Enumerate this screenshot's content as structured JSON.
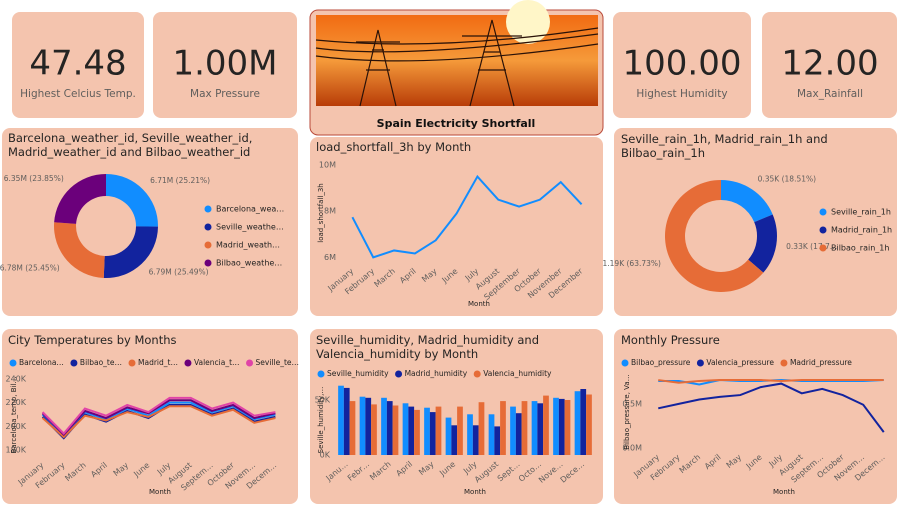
{
  "cards": [
    {
      "value": "47.48",
      "label": "Highest Celcius Temp."
    },
    {
      "value": "1.00M",
      "label": "Max Pressure"
    },
    {
      "value": "100.00",
      "label": "Highest Humidity"
    },
    {
      "value": "12.00",
      "label": "Max_Rainfall"
    }
  ],
  "banner": {
    "title": "Spain Electricity Shortfall"
  },
  "chart_data": [
    {
      "type": "donut",
      "title": "Barcelona_weather_id, Seville_weather_id, Madrid_weather_id and Bilbao_weather_id",
      "categories": [
        "Barcelona_wea…",
        "Seville_weathe…",
        "Madrid_weath…",
        "Bilbao_weathe…"
      ],
      "values": [
        6710000,
        6790000,
        6780000,
        6350000
      ],
      "value_labels": [
        "6.71M (25.21%)",
        "6.79M (25.49%)",
        "6.78M (25.45%)",
        "6.35M (23.85%)"
      ],
      "colors": [
        "#118DFF",
        "#12239E",
        "#E66C37",
        "#6B007B"
      ]
    },
    {
      "type": "line",
      "title": "load_shortfall_3h by Month",
      "x_label": "Month",
      "y_label": "load_shortfall_3h",
      "categories": [
        "January",
        "February",
        "March",
        "April",
        "May",
        "June",
        "July",
        "August",
        "September",
        "October",
        "November",
        "December"
      ],
      "values": [
        7740000,
        6000000,
        6300000,
        6170000,
        6740000,
        7900000,
        9500000,
        8500000,
        8200000,
        8500000,
        9260000,
        8300000
      ],
      "color": "#118DFF",
      "ylim": [
        5800000,
        10000000
      ],
      "yticks": [
        {
          "value": 6000000,
          "label": "6M"
        },
        {
          "value": 8000000,
          "label": "8M"
        },
        {
          "value": 10000000,
          "label": "10M"
        }
      ]
    },
    {
      "type": "donut",
      "title": "Seville_rain_1h, Madrid_rain_1h and Bilbao_rain_1h",
      "categories": [
        "Seville_rain_1h",
        "Madrid_rain_1h",
        "Bilbao_rain_1h"
      ],
      "values": [
        350,
        330,
        1190
      ],
      "value_labels": [
        "0.35K (18.51%)",
        "0.33K (17.7…",
        "1.19K (63.73%)"
      ],
      "colors": [
        "#118DFF",
        "#12239E",
        "#E66C37"
      ]
    },
    {
      "type": "line",
      "title": "City Temperatures by Months",
      "x_label": "Month",
      "y_label": "Barcelona_temp, Bil…",
      "categories": [
        "January",
        "February",
        "March",
        "April",
        "May",
        "June",
        "July",
        "August",
        "Septem…",
        "October",
        "Novem…",
        "Decem…"
      ],
      "series": [
        {
          "name": "Barcelona…",
          "color": "#118DFF",
          "values": [
            210000,
            192000,
            212000,
            206000,
            215000,
            209000,
            220000,
            220000,
            212000,
            217000,
            206000,
            210000
          ]
        },
        {
          "name": "Bilbao_te…",
          "color": "#12239E",
          "values": [
            208000,
            190000,
            210000,
            204000,
            213000,
            207000,
            218000,
            218000,
            210000,
            215000,
            204000,
            208000
          ]
        },
        {
          "name": "Madrid_t…",
          "color": "#E66C37",
          "values": [
            207000,
            191000,
            209000,
            205000,
            212000,
            208000,
            217000,
            217000,
            209000,
            214000,
            203000,
            207000
          ]
        },
        {
          "name": "Valencia_t…",
          "color": "#6B007B",
          "values": [
            211000,
            193000,
            213000,
            207000,
            216000,
            211000,
            222000,
            222000,
            213000,
            218000,
            207000,
            211000
          ]
        },
        {
          "name": "Seville_te…",
          "color": "#E044A7",
          "values": [
            212000,
            194000,
            215000,
            209000,
            218000,
            212000,
            224000,
            224000,
            215000,
            220000,
            209000,
            212000
          ]
        }
      ],
      "ylim": [
        175000,
        245000
      ],
      "yticks": [
        {
          "value": 180000,
          "label": "180K"
        },
        {
          "value": 200000,
          "label": "200K"
        },
        {
          "value": 220000,
          "label": "220K"
        },
        {
          "value": 240000,
          "label": "240K"
        }
      ]
    },
    {
      "type": "bar",
      "title": "Seville_humidity, Madrid_humidity and Valencia_humidity by Month",
      "x_label": "Month",
      "y_label": "Seville_humidity,…",
      "categories": [
        "Janu…",
        "Febr…",
        "March",
        "April",
        "May",
        "June",
        "July",
        "August",
        "Sept…",
        "Octo…",
        "Nove…",
        "Dece…"
      ],
      "series": [
        {
          "name": "Seville_humidity",
          "color": "#118DFF",
          "values": [
            63000,
            53000,
            52000,
            47000,
            43000,
            34000,
            37000,
            37000,
            44000,
            49000,
            52000,
            58000
          ]
        },
        {
          "name": "Madrid_humidity",
          "color": "#12239E",
          "values": [
            61000,
            52000,
            49000,
            44000,
            39000,
            27000,
            27000,
            26000,
            38000,
            47000,
            51000,
            60000
          ]
        },
        {
          "name": "Valencia_humidity",
          "color": "#E66C37",
          "values": [
            49000,
            46000,
            45000,
            41000,
            44000,
            44000,
            48000,
            49000,
            49000,
            54000,
            50000,
            55000
          ]
        }
      ],
      "ylim": [
        0,
        70000
      ],
      "yticks": [
        {
          "value": 0,
          "label": "0K"
        },
        {
          "value": 50000,
          "label": "50K"
        }
      ]
    },
    {
      "type": "line",
      "title": "Monthly Pressure",
      "x_label": "Month",
      "y_label": "Bilbao_pressure, Va…",
      "categories": [
        "January",
        "February",
        "March",
        "April",
        "May",
        "June",
        "July",
        "August",
        "Septem…",
        "October",
        "Novem…",
        "Decem…"
      ],
      "series": [
        {
          "name": "Bilbao_pressure",
          "color": "#118DFF",
          "values": [
            760000,
            760000,
            720000,
            770000,
            760000,
            760000,
            770000,
            760000,
            760000,
            760000,
            760000,
            770000
          ]
        },
        {
          "name": "Valencia_pressure",
          "color": "#12239E",
          "values": [
            450000,
            500000,
            550000,
            580000,
            600000,
            690000,
            730000,
            620000,
            670000,
            600000,
            490000,
            180000
          ]
        },
        {
          "name": "Madrid_pressure",
          "color": "#E66C37",
          "values": [
            770000,
            740000,
            760000,
            770000,
            770000,
            770000,
            760000,
            770000,
            770000,
            770000,
            770000,
            770000
          ]
        }
      ],
      "ylim": [
        0,
        850000
      ],
      "yticks": [
        {
          "value": 0,
          "label": "0.0M"
        },
        {
          "value": 500000,
          "label": "0.5M"
        }
      ]
    }
  ]
}
